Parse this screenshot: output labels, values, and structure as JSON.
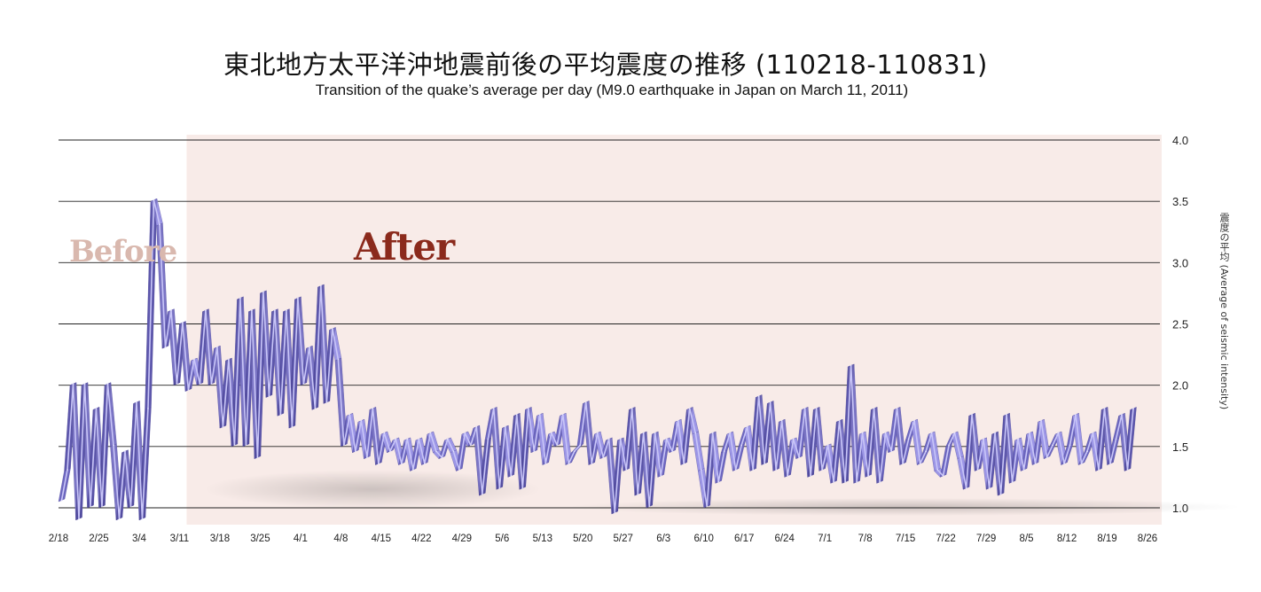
{
  "title": "東北地方太平洋沖地震前後の平均震度の推移 (110218-110831)",
  "subtitle": "Transition of the quake’s average per day  (M9.0 earthquake in Japan on March 11, 2011)",
  "chart_data": {
    "type": "line",
    "title": "東北地方太平洋沖地震前後の平均震度の推移 (110218-110831)",
    "subtitle": "Transition of the quake’s average per day  (M9.0 earthquake in Japan on March 11, 2011)",
    "xlabel": "",
    "ylabel": "震度の平均 (Average of seismic intensity)",
    "ylim": [
      1.0,
      4.0
    ],
    "yticks": [
      "1.0",
      "1.5",
      "2.0",
      "2.5",
      "3.0",
      "3.5",
      "4.0"
    ],
    "xticks": [
      "2/18",
      "2/25",
      "3/4",
      "3/11",
      "3/18",
      "3/25",
      "4/1",
      "4/8",
      "4/15",
      "4/22",
      "4/29",
      "5/6",
      "5/13",
      "5/20",
      "5/27",
      "6/3",
      "6/10",
      "6/17",
      "6/24",
      "7/1",
      "7/8",
      "7/15",
      "7/22",
      "7/29",
      "8/5",
      "8/12",
      "8/19",
      "8/26"
    ],
    "grid": true,
    "annotations": [
      {
        "text": "Before",
        "color": "#d9b8ae"
      },
      {
        "text": "After",
        "color": "#8b2a1c"
      }
    ],
    "colors": {
      "series": "#8f88d6",
      "highlight_bg": "#f8ebe8",
      "after_text": "#8b2a1c",
      "before_text": "#d9b8ae"
    },
    "series": [
      {
        "start": "2011-02-18",
        "values": [
          1.05,
          1.3,
          2.0,
          0.9,
          2.0,
          1.0,
          1.8,
          1.0,
          2.0,
          1.5,
          0.9,
          1.45,
          1.0,
          1.85,
          0.9,
          1.8,
          3.5,
          3.3,
          2.3,
          2.6,
          2.0,
          2.5,
          1.95,
          2.2,
          2.0,
          2.6,
          2.0,
          2.3,
          1.65,
          2.2,
          1.5,
          2.7,
          1.5,
          2.6,
          1.4,
          2.75,
          1.9,
          2.6,
          1.75,
          2.6,
          1.65,
          2.7,
          2.0,
          2.3,
          1.8,
          2.8,
          1.85,
          2.45,
          2.2,
          1.5,
          1.75,
          1.45,
          1.7,
          1.4,
          1.8,
          1.35,
          1.6,
          1.45,
          1.55,
          1.35,
          1.55,
          1.3,
          1.55,
          1.35,
          1.6,
          1.45,
          1.4,
          1.55,
          1.45,
          1.3,
          1.6,
          1.5,
          1.65,
          1.1,
          1.55,
          1.8,
          1.15,
          1.65,
          1.25,
          1.75,
          1.15,
          1.8,
          1.45,
          1.75,
          1.35,
          1.6,
          1.5,
          1.75,
          1.35,
          1.45,
          1.5,
          1.85,
          1.35,
          1.6,
          1.4,
          1.55,
          0.95,
          1.55,
          1.3,
          1.8,
          1.1,
          1.6,
          1.0,
          1.6,
          1.25,
          1.55,
          1.45,
          1.7,
          1.35,
          1.8,
          1.6,
          1.3,
          1.0,
          1.6,
          1.2,
          1.45,
          1.6,
          1.3,
          1.5,
          1.65,
          1.3,
          1.9,
          1.35,
          1.85,
          1.3,
          1.7,
          1.25,
          1.55,
          1.4,
          1.8,
          1.25,
          1.8,
          1.3,
          1.5,
          1.2,
          1.7,
          1.2,
          2.15,
          1.2,
          1.6,
          1.25,
          1.8,
          1.2,
          1.6,
          1.45,
          1.8,
          1.35,
          1.55,
          1.7,
          1.35,
          1.45,
          1.6,
          1.3,
          1.25,
          1.5,
          1.6,
          1.4,
          1.15,
          1.75,
          1.3,
          1.55,
          1.15,
          1.6,
          1.1,
          1.75,
          1.2,
          1.55,
          1.3,
          1.6,
          1.35,
          1.7,
          1.4,
          1.5,
          1.6,
          1.35,
          1.5,
          1.75,
          1.35,
          1.45,
          1.6,
          1.3,
          1.8,
          1.35,
          1.55,
          1.75,
          1.3,
          1.8
        ]
      }
    ]
  }
}
